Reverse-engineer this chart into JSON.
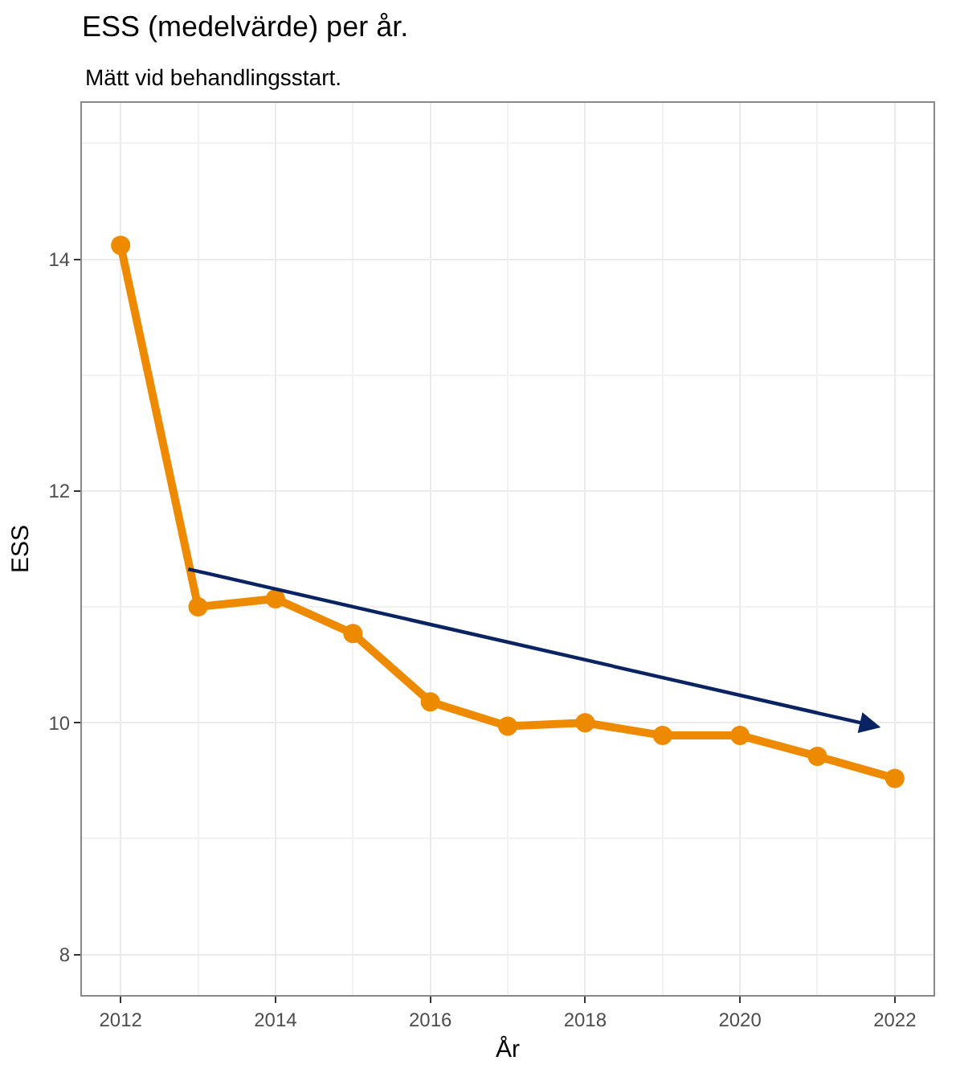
{
  "chart_data": {
    "type": "line",
    "title": "ESS (medelvärde) per år.",
    "subtitle": "Mätt vid behandlingsstart.",
    "xlabel": "År",
    "ylabel": "ESS",
    "x": [
      2012,
      2013,
      2014,
      2015,
      2016,
      2017,
      2018,
      2019,
      2020,
      2021,
      2022
    ],
    "series": [
      {
        "color": "#ee8a00",
        "values": [
          14.12,
          11.0,
          11.07,
          10.77,
          10.18,
          9.97,
          10.0,
          9.89,
          9.89,
          9.71,
          9.52
        ],
        "marker": "circle"
      }
    ],
    "xlim": [
      2011.5,
      2022.5
    ],
    "xticks": [
      2012,
      2014,
      2016,
      2018,
      2020,
      2022
    ],
    "ylim": [
      7.65,
      15.35
    ],
    "yticks": [
      8,
      10,
      12,
      14
    ],
    "grid": true,
    "line_style": "solid"
  }
}
